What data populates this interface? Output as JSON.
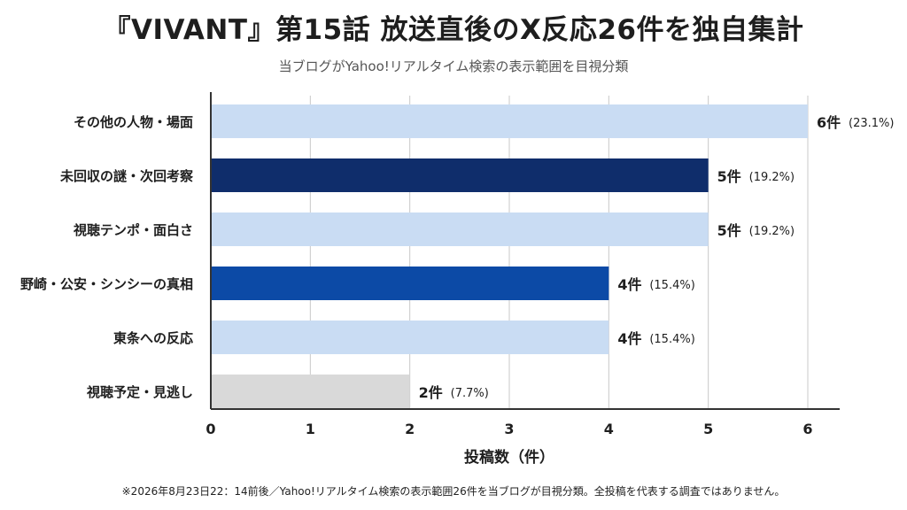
{
  "title": "『VIVANT』第15話 放送直後のX反応26件を独自集計",
  "subtitle": "当ブログがYahoo!リアルタイム検索の表示範囲を目視分類",
  "footnote": "※2026年8月23日22：14前後／Yahoo!リアルタイム検索の表示範囲26件を当ブログが目視分類。全投稿を代表する調査ではありません。",
  "colors": {
    "light_blue": "#c9dcf3",
    "dark_navy": "#0f2d6b",
    "mid_blue": "#0c4aa6",
    "gray": "#d9d9d9"
  },
  "chart_data": {
    "type": "bar",
    "orientation": "horizontal",
    "categories": [
      "その他の人物・場面",
      "未回収の謎・次回考察",
      "視聴テンポ・面白さ",
      "野崎・公安・シンシーの真相",
      "東条への反応",
      "視聴予定・見逃し"
    ],
    "values": [
      6,
      5,
      5,
      4,
      4,
      2
    ],
    "value_labels": [
      "6件",
      "5件",
      "5件",
      "4件",
      "4件",
      "2件"
    ],
    "percent_labels": [
      "(23.1%)",
      "(19.2%)",
      "(19.2%)",
      "(15.4%)",
      "(15.4%)",
      "(7.7%)"
    ],
    "bar_colors": [
      "#c9dcf3",
      "#0f2d6b",
      "#c9dcf3",
      "#0c4aa6",
      "#c9dcf3",
      "#d9d9d9"
    ],
    "xlabel": "投稿数（件）",
    "ylabel": "",
    "xlim": [
      0,
      6
    ],
    "xticks": [
      "0",
      "1",
      "2",
      "3",
      "4",
      "5",
      "6"
    ],
    "grid": "vertical"
  }
}
